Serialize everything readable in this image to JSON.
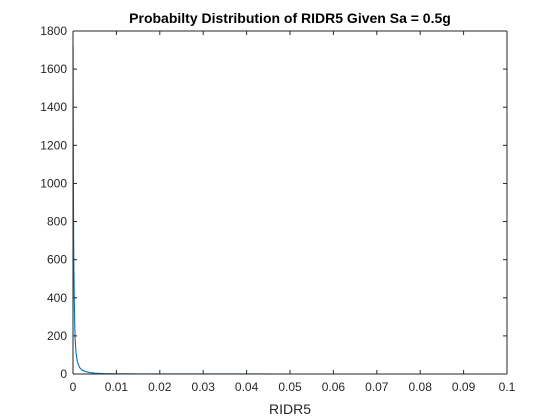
{
  "chart_data": {
    "type": "line",
    "title": "Probabilty Distribution of RIDR5 Given Sa = 0.5g",
    "xlabel": "RIDR5",
    "ylabel": "",
    "xlim": [
      0,
      0.1
    ],
    "ylim": [
      0,
      1800
    ],
    "xticks": [
      0,
      0.01,
      0.02,
      0.03,
      0.04,
      0.05,
      0.06,
      0.07,
      0.08,
      0.09,
      0.1
    ],
    "xtick_labels": [
      "0",
      "0.01",
      "0.02",
      "0.03",
      "0.04",
      "0.05",
      "0.06",
      "0.07",
      "0.08",
      "0.09",
      "0.1"
    ],
    "yticks": [
      0,
      200,
      400,
      600,
      800,
      1000,
      1200,
      1400,
      1600,
      1800
    ],
    "ytick_labels": [
      "0",
      "200",
      "400",
      "600",
      "800",
      "1000",
      "1200",
      "1400",
      "1600",
      "1800"
    ],
    "grid": false,
    "legend": "none",
    "series": [
      {
        "color": "#0072BD",
        "x": [
          2e-05,
          5e-05,
          0.0001,
          0.00015,
          0.0002,
          0.0003,
          0.0004,
          0.0005,
          0.0007,
          0.001,
          0.0015,
          0.002,
          0.003,
          0.004,
          0.005,
          0.007,
          0.01,
          0.015,
          0.02,
          0.03,
          0.05,
          0.07,
          0.1
        ],
        "y": [
          1720,
          1380,
          960,
          720,
          560,
          380,
          260,
          180,
          110,
          65,
          35,
          22,
          12,
          7,
          4.5,
          2.5,
          1.2,
          0.5,
          0.25,
          0.1,
          0.03,
          0.01,
          0.003
        ]
      }
    ]
  },
  "colors": {
    "axes": "#262626",
    "line": "#0072BD",
    "background": "#ffffff"
  }
}
